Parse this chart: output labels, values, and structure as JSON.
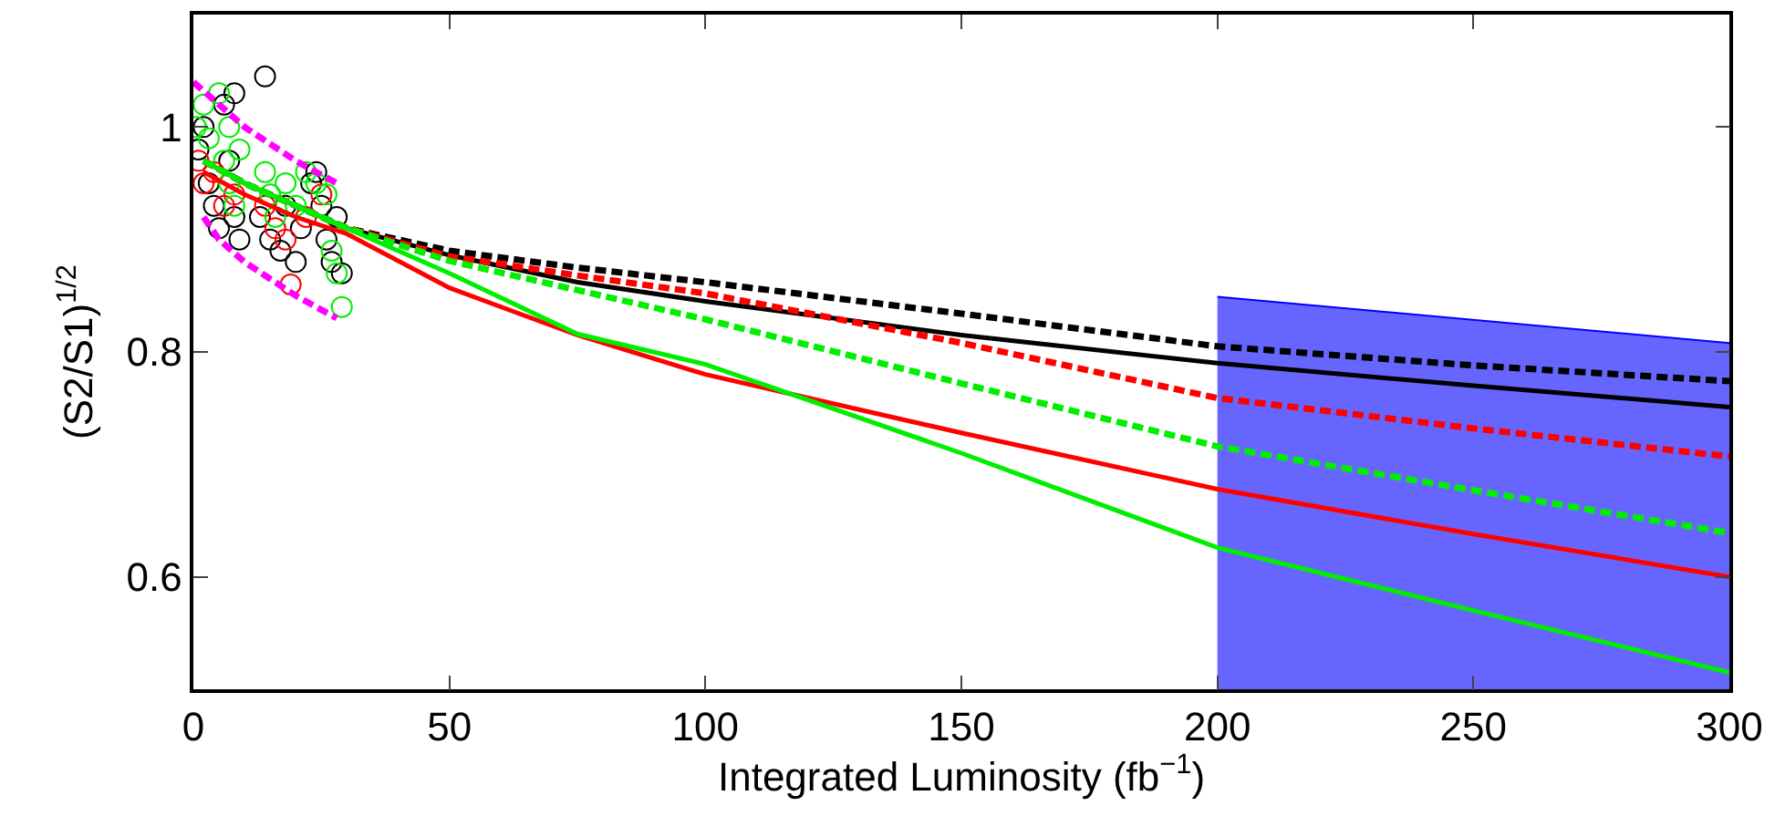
{
  "chart_data": {
    "type": "line",
    "xlabel": "Integrated Luminosity (fb$^{−1}$)",
    "ylabel": "(S2/S1)$^{1/2}$",
    "xlim": [
      0,
      300
    ],
    "ylim": [
      0.5,
      1.1
    ],
    "xticks": [
      0,
      50,
      100,
      150,
      200,
      250,
      300
    ],
    "yticks": [
      0.6,
      0.8,
      {
        "value": 1,
        "label": "1"
      }
    ],
    "grid": false,
    "series": [
      {
        "type": "area",
        "color": "#0000ff",
        "x": [
          200,
          300
        ],
        "values": [
          0.849,
          0.808
        ]
      },
      {
        "type": "scatter",
        "marker": "circle",
        "color": "#000000",
        "x": [
          1,
          2,
          3,
          4,
          5,
          6,
          7,
          8,
          9,
          14,
          13,
          15,
          17,
          18,
          20,
          21,
          23,
          25,
          26,
          27,
          28,
          29,
          24,
          8
        ],
        "values": [
          0.98,
          1.0,
          0.95,
          0.93,
          0.91,
          1.02,
          0.97,
          0.92,
          0.9,
          1.045,
          0.92,
          0.9,
          0.89,
          0.93,
          0.88,
          0.91,
          0.95,
          0.93,
          0.9,
          0.88,
          0.92,
          0.87,
          0.96,
          1.03
        ]
      },
      {
        "type": "scatter",
        "marker": "circle",
        "color": "#ff0000",
        "x": [
          1,
          2,
          4,
          6,
          8,
          14,
          16,
          18,
          19,
          22,
          25
        ],
        "values": [
          0.97,
          0.95,
          0.96,
          0.93,
          0.94,
          0.93,
          0.91,
          0.9,
          0.86,
          0.92,
          0.94
        ]
      },
      {
        "type": "scatter",
        "marker": "circle",
        "color": "#00ee00",
        "x": [
          0.5,
          2,
          3,
          5,
          6,
          7,
          8,
          9,
          7,
          14,
          15,
          16,
          18,
          20,
          22,
          24,
          26,
          27,
          28,
          29
        ],
        "values": [
          1.0,
          1.02,
          0.99,
          1.03,
          0.97,
          0.95,
          0.93,
          0.98,
          1.0,
          0.96,
          0.94,
          0.92,
          0.95,
          0.93,
          0.96,
          0.95,
          0.94,
          0.89,
          0.87,
          0.84
        ]
      },
      {
        "type": "line",
        "line_style": "dashed",
        "color": "#ff00ff",
        "x": [
          0,
          5,
          10,
          20,
          28
        ],
        "values": [
          1.04,
          1.02,
          1.0,
          0.97,
          0.95
        ]
      },
      {
        "type": "line",
        "line_style": "dashed",
        "color": "#ff00ff",
        "x": [
          2,
          5,
          10,
          20,
          28
        ],
        "values": [
          0.92,
          0.9,
          0.88,
          0.85,
          0.83
        ]
      },
      {
        "line_style": "solid",
        "color": "#000000",
        "x": [
          2,
          10,
          20,
          30,
          50,
          75,
          100,
          150,
          200,
          250,
          300
        ],
        "values": [
          0.97,
          0.95,
          0.93,
          0.91,
          0.886,
          0.862,
          0.845,
          0.815,
          0.79,
          0.77,
          0.751
        ]
      },
      {
        "line_style": "dashed",
        "color": "#000000",
        "x": [
          2,
          10,
          20,
          30,
          50,
          75,
          100,
          150,
          200,
          250,
          300
        ],
        "values": [
          0.97,
          0.95,
          0.93,
          0.91,
          0.89,
          0.875,
          0.862,
          0.834,
          0.805,
          0.788,
          0.774
        ]
      },
      {
        "line_style": "dashed",
        "color": "#ff0000",
        "x": [
          2,
          10,
          20,
          30,
          50,
          75,
          100,
          150,
          200,
          250,
          300
        ],
        "values": [
          0.97,
          0.95,
          0.93,
          0.91,
          0.885,
          0.868,
          0.852,
          0.808,
          0.759,
          0.732,
          0.707
        ]
      },
      {
        "line_style": "solid",
        "color": "#ff0000",
        "x": [
          2,
          10,
          20,
          30,
          50,
          75,
          100,
          150,
          200,
          250,
          300
        ],
        "values": [
          0.96,
          0.94,
          0.92,
          0.905,
          0.857,
          0.815,
          0.78,
          0.728,
          0.678,
          0.638,
          0.6
        ]
      },
      {
        "line_style": "dashed",
        "color": "#00ee00",
        "x": [
          2,
          10,
          20,
          30,
          50,
          75,
          100,
          150,
          200,
          250,
          300
        ],
        "values": [
          0.97,
          0.95,
          0.93,
          0.91,
          0.881,
          0.855,
          0.829,
          0.772,
          0.716,
          0.677,
          0.639
        ]
      },
      {
        "line_style": "solid",
        "color": "#00ee00",
        "x": [
          2,
          10,
          20,
          30,
          50,
          75,
          100,
          150,
          200,
          250,
          300
        ],
        "values": [
          0.97,
          0.95,
          0.93,
          0.91,
          0.87,
          0.816,
          0.789,
          0.71,
          0.626,
          0.57,
          0.515
        ]
      }
    ]
  }
}
